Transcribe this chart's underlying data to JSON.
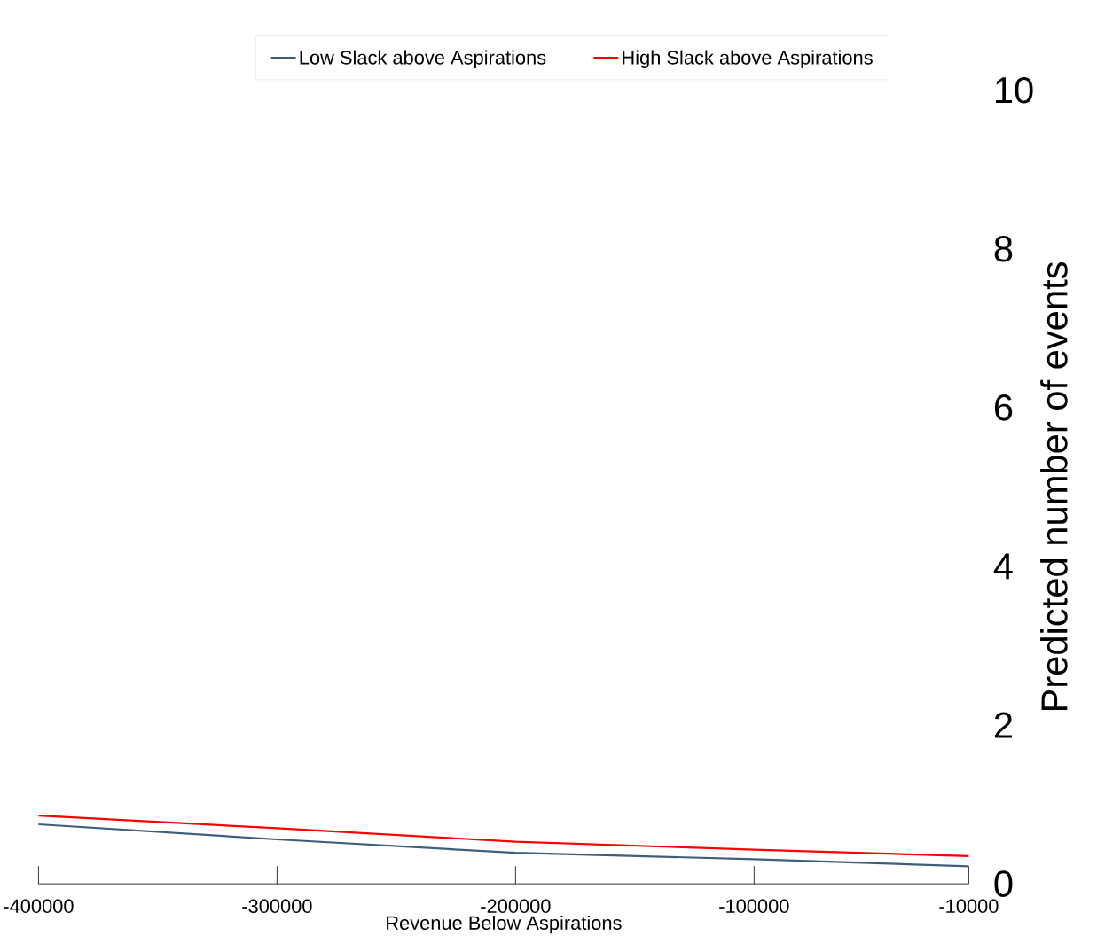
{
  "chart_data": {
    "type": "line",
    "xlabel": "Revenue Below Aspirations",
    "ylabel": "Predicted number of events",
    "x": [
      -400000,
      -300000,
      -200000,
      -100000,
      -10000
    ],
    "series": [
      {
        "name": "Low Slack above Aspirations",
        "color": "#3d5f7c",
        "values": [
          0.75,
          0.56,
          0.39,
          0.31,
          0.22
        ]
      },
      {
        "name": "High Slack above Aspirations",
        "color": "#ff0000",
        "values": [
          0.86,
          0.7,
          0.53,
          0.43,
          0.35
        ]
      }
    ],
    "xlim": [
      -400000,
      -10000
    ],
    "xticks": [
      -400000,
      -300000,
      -200000,
      -100000,
      -10000
    ],
    "ylim": [
      0,
      10
    ],
    "yticks": [
      0,
      2,
      4,
      6,
      8,
      10
    ],
    "grid": false,
    "legend": "top",
    "marker": "none",
    "line_style": "solid"
  }
}
